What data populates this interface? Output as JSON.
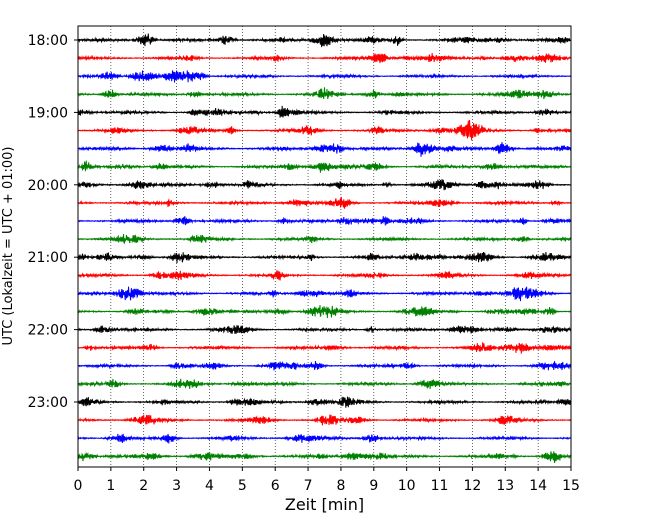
{
  "chart_data": {
    "type": "line",
    "title": "",
    "xlabel": "Zeit  [min]",
    "ylabel": "UTC (Lokalzeit = UTC + 01:00)",
    "xlim": [
      0,
      15
    ],
    "x_ticks": [
      0,
      1,
      2,
      3,
      4,
      5,
      6,
      7,
      8,
      9,
      10,
      11,
      12,
      13,
      14,
      15
    ],
    "y_tick_labels": [
      "18:00",
      "19:00",
      "20:00",
      "21:00",
      "22:00",
      "23:00"
    ],
    "grid": "vertical dotted lines at each minute",
    "trace_interval_min": 15,
    "trace_color_cycle": [
      "#000000",
      "#ff0000",
      "#0000ff",
      "#008000"
    ],
    "traces": [
      {
        "start": "18:00",
        "color": "#000000"
      },
      {
        "start": "18:15",
        "color": "#ff0000"
      },
      {
        "start": "18:30",
        "color": "#0000ff"
      },
      {
        "start": "18:45",
        "color": "#008000"
      },
      {
        "start": "19:00",
        "color": "#000000"
      },
      {
        "start": "19:15",
        "color": "#ff0000"
      },
      {
        "start": "19:30",
        "color": "#0000ff"
      },
      {
        "start": "19:45",
        "color": "#008000"
      },
      {
        "start": "20:00",
        "color": "#000000"
      },
      {
        "start": "20:15",
        "color": "#ff0000"
      },
      {
        "start": "20:30",
        "color": "#0000ff"
      },
      {
        "start": "20:45",
        "color": "#008000"
      },
      {
        "start": "21:00",
        "color": "#000000"
      },
      {
        "start": "21:15",
        "color": "#ff0000"
      },
      {
        "start": "21:30",
        "color": "#0000ff"
      },
      {
        "start": "21:45",
        "color": "#008000"
      },
      {
        "start": "22:00",
        "color": "#000000"
      },
      {
        "start": "22:15",
        "color": "#ff0000"
      },
      {
        "start": "22:30",
        "color": "#0000ff"
      },
      {
        "start": "22:45",
        "color": "#008000"
      },
      {
        "start": "23:00",
        "color": "#000000"
      },
      {
        "start": "23:15",
        "color": "#ff0000"
      },
      {
        "start": "23:30",
        "color": "#0000ff"
      },
      {
        "start": "23:45",
        "color": "#008000"
      }
    ]
  }
}
